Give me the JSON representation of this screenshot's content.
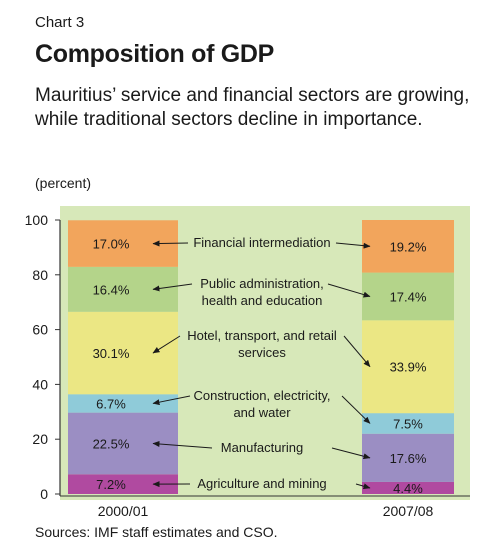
{
  "header": {
    "chart_number": "Chart 3",
    "title": "Composition of GDP",
    "subtitle": "Mauritius’ service and financial sectors are growing, while traditional sectors decline in importance.",
    "unit": "(percent)"
  },
  "footer": {
    "source": "Sources: IMF staff estimates and CSO."
  },
  "colors": {
    "background": "#d7e8b9",
    "axis": "#333333",
    "segments": [
      "#b04aa0",
      "#9b8ec3",
      "#8fcbd9",
      "#ebe784",
      "#b4d48a",
      "#f2a55c"
    ]
  },
  "chart_data": {
    "type": "bar",
    "stacked": true,
    "categories": [
      "2000/01",
      "2007/08"
    ],
    "ylim": [
      0,
      100
    ],
    "yticks": [
      0,
      20,
      40,
      60,
      80,
      100
    ],
    "title": "",
    "xlabel": "",
    "ylabel": "",
    "grid": false,
    "series": [
      {
        "name": "Agriculture and mining",
        "values": [
          7.2,
          4.4
        ],
        "labels": [
          "7.2%",
          "4.4%"
        ]
      },
      {
        "name": "Manufacturing",
        "values": [
          22.5,
          17.6
        ],
        "labels": [
          "22.5%",
          "17.6%"
        ]
      },
      {
        "name": "Construction, electricity, and water",
        "values": [
          6.7,
          7.5
        ],
        "labels": [
          "6.7%",
          "7.5%"
        ]
      },
      {
        "name": "Hotel, transport, and retail services",
        "values": [
          30.1,
          33.9
        ],
        "labels": [
          "30.1%",
          "33.9%"
        ]
      },
      {
        "name": "Public administration, health and education",
        "values": [
          16.4,
          17.4
        ],
        "labels": [
          "16.4%",
          "17.4%"
        ]
      },
      {
        "name": "Financial intermediation",
        "values": [
          17.0,
          19.2
        ],
        "labels": [
          "17.0%",
          "19.2%"
        ]
      }
    ]
  }
}
